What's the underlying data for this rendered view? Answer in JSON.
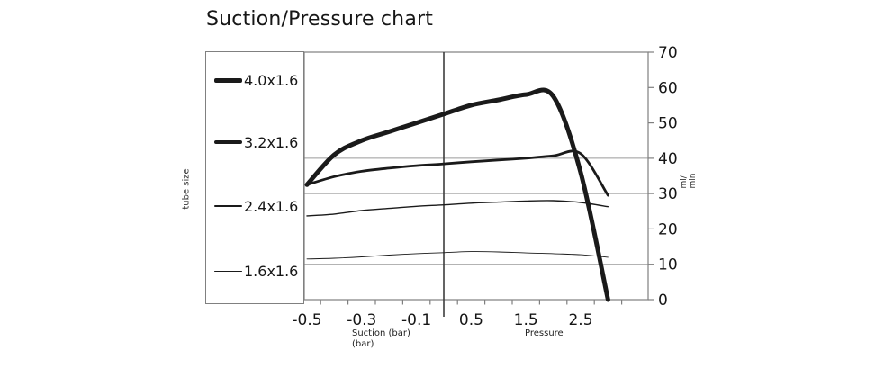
{
  "title": "Suction/Pressure chart",
  "legend": {
    "axis_label": "tube size",
    "items": [
      {
        "label": "4.0x1.6",
        "stroke_width": 5
      },
      {
        "label": "3.2x1.6",
        "stroke_width": 3.4
      },
      {
        "label": "2.4x1.6",
        "stroke_width": 1.6
      },
      {
        "label": "1.6x1.6",
        "stroke_width": 1
      }
    ]
  },
  "chart_data": {
    "type": "line",
    "title": "Suction/Pressure chart",
    "x_axis_style": "category",
    "x": [
      -0.5,
      -0.4,
      -0.3,
      -0.2,
      -0.1,
      0,
      0.5,
      1.0,
      1.5,
      2.0,
      2.5,
      3.0
    ],
    "x_tick_labels": [
      "-0.5",
      "-0.3",
      "-0.1",
      "0.5",
      "1.5",
      "2.5"
    ],
    "x_tick_label_indices": [
      0,
      2,
      4,
      6,
      8,
      10
    ],
    "x_sub_labels": {
      "suction": "Suction (bar)\n(bar)",
      "pressure": "Pressure"
    },
    "zero_divider_at_x": 0,
    "ylim": [
      0,
      70
    ],
    "y_ticks": [
      0,
      10,
      20,
      30,
      40,
      50,
      60,
      70
    ],
    "gridline_values": [
      10,
      30,
      40
    ],
    "y_unit_label": "ml/\nmin",
    "legend_title": "tube size",
    "legend_position": "left",
    "series": [
      {
        "name": "4.0x1.6",
        "stroke_width": 5,
        "values": [
          32.5,
          41,
          45,
          47.5,
          50,
          52.5,
          55,
          56.5,
          58,
          57.5,
          36,
          0
        ]
      },
      {
        "name": "3.2x1.6",
        "stroke_width": 2.8,
        "values": [
          32.5,
          34.8,
          36.3,
          37.2,
          37.9,
          38.4,
          39,
          39.5,
          40,
          40.7,
          41.3,
          29.5
        ]
      },
      {
        "name": "2.4x1.6",
        "stroke_width": 1.4,
        "values": [
          23.7,
          24.2,
          25.2,
          25.8,
          26.4,
          26.8,
          27.3,
          27.6,
          27.9,
          28,
          27.5,
          26.3
        ]
      },
      {
        "name": "1.6x1.6",
        "stroke_width": 0.9,
        "values": [
          11.5,
          11.7,
          12.1,
          12.6,
          13,
          13.3,
          13.6,
          13.5,
          13.2,
          13,
          12.7,
          12
        ]
      }
    ],
    "colors": {
      "series": "#1a1a1a",
      "grid": "#9a9a9a",
      "border": "#7f7f7f",
      "divider": "#3d3d3d",
      "text": "#161616"
    }
  }
}
